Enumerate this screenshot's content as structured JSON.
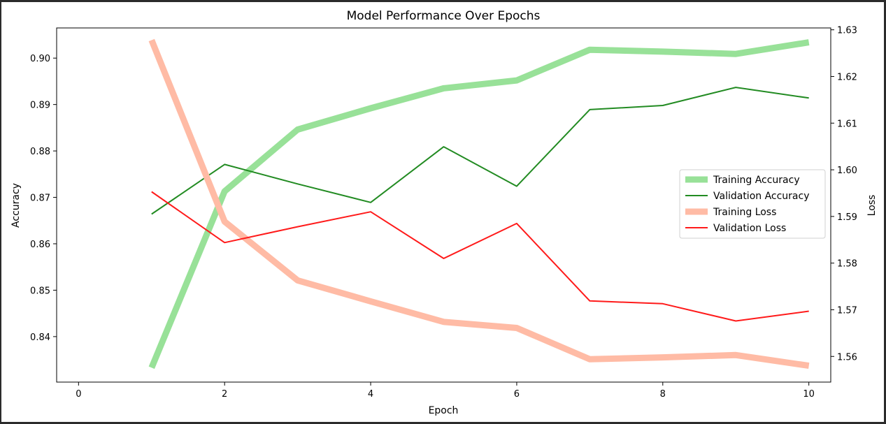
{
  "chart_data": {
    "type": "line",
    "title": "Model Performance Over Epochs",
    "xlabel": "Epoch",
    "ylabel_left": "Accuracy",
    "ylabel_right": "Loss",
    "x": [
      1,
      2,
      3,
      4,
      5,
      6,
      7,
      8,
      9,
      10
    ],
    "xlim": [
      -0.3,
      10.3
    ],
    "xticks": [
      0,
      2,
      4,
      6,
      8,
      10
    ],
    "ylim_left": [
      0.8302,
      0.9065
    ],
    "yticks_left": [
      0.84,
      0.85,
      0.86,
      0.87,
      0.88,
      0.89,
      0.9
    ],
    "ylim_right": [
      1.5545,
      1.6304
    ],
    "yticks_right": [
      1.56,
      1.57,
      1.58,
      1.59,
      1.6,
      1.61,
      1.62,
      1.63
    ],
    "grid": false,
    "legend_position": "center-right",
    "series": [
      {
        "name": "Training Accuracy",
        "axis": "left",
        "color": "#98e198",
        "style": "thick",
        "values": [
          0.8333,
          0.8713,
          0.8846,
          0.8892,
          0.8935,
          0.8952,
          0.9018,
          0.9014,
          0.9009,
          0.9034
        ]
      },
      {
        "name": " Validation Accuracy",
        "axis": "left",
        "color": "#228b22",
        "style": "thin",
        "values": [
          0.8664,
          0.8771,
          0.8729,
          0.8689,
          0.8809,
          0.8724,
          0.8889,
          0.8898,
          0.8937,
          0.8914
        ]
      },
      {
        "name": "Training Loss",
        "axis": "right",
        "color": "#ffbba5",
        "style": "thick",
        "values": [
          1.6278,
          1.5889,
          1.5763,
          1.5718,
          1.5674,
          1.5661,
          1.5594,
          1.5598,
          1.5603,
          1.558
        ]
      },
      {
        "name": "Validation Loss",
        "axis": "right",
        "color": "#ff1a1a",
        "style": "thin",
        "values": [
          1.5953,
          1.5844,
          1.5878,
          1.591,
          1.581,
          1.5885,
          1.5719,
          1.5713,
          1.5676,
          1.5697
        ]
      }
    ]
  }
}
